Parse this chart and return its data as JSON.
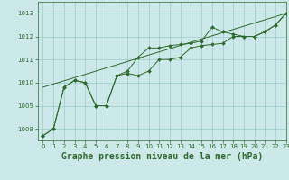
{
  "title": "Graphe pression niveau de la mer (hPa)",
  "bg_color": "#cce8e8",
  "line_color": "#2d6a2d",
  "grid_color": "#99cccc",
  "xlim": [
    -0.5,
    23
  ],
  "ylim": [
    1007.5,
    1013.5
  ],
  "yticks": [
    1008,
    1009,
    1010,
    1011,
    1012,
    1013
  ],
  "xticks": [
    0,
    1,
    2,
    3,
    4,
    5,
    6,
    7,
    8,
    9,
    10,
    11,
    12,
    13,
    14,
    15,
    16,
    17,
    18,
    19,
    20,
    21,
    22,
    23
  ],
  "series1_x": [
    0,
    1,
    2,
    3,
    4,
    5,
    6,
    7,
    8,
    9,
    10,
    11,
    12,
    13,
    14,
    15,
    16,
    17,
    18,
    19,
    20,
    21,
    22,
    23
  ],
  "series1_y": [
    1007.7,
    1008.0,
    1009.8,
    1010.1,
    1010.0,
    1009.0,
    1009.0,
    1010.3,
    1010.4,
    1010.3,
    1010.5,
    1011.0,
    1011.0,
    1011.1,
    1011.5,
    1011.6,
    1011.65,
    1011.7,
    1012.0,
    1012.0,
    1012.0,
    1012.2,
    1012.5,
    1013.0
  ],
  "series2_x": [
    0,
    1,
    2,
    3,
    4,
    5,
    6,
    7,
    8,
    9,
    10,
    11,
    12,
    13,
    14,
    15,
    16,
    17,
    18,
    19,
    20,
    21,
    22,
    23
  ],
  "series2_y": [
    1007.7,
    1008.0,
    1009.8,
    1010.1,
    1010.0,
    1009.0,
    1009.0,
    1010.3,
    1010.5,
    1011.1,
    1011.5,
    1011.5,
    1011.6,
    1011.65,
    1011.7,
    1011.8,
    1012.4,
    1012.2,
    1012.1,
    1012.0,
    1012.0,
    1012.2,
    1012.5,
    1013.0
  ],
  "trend_x": [
    0,
    23
  ],
  "trend_y": [
    1009.8,
    1013.0
  ],
  "marker": "D",
  "marker_size": 2.0,
  "linewidth": 0.7,
  "title_fontsize": 7,
  "tick_fontsize": 5
}
